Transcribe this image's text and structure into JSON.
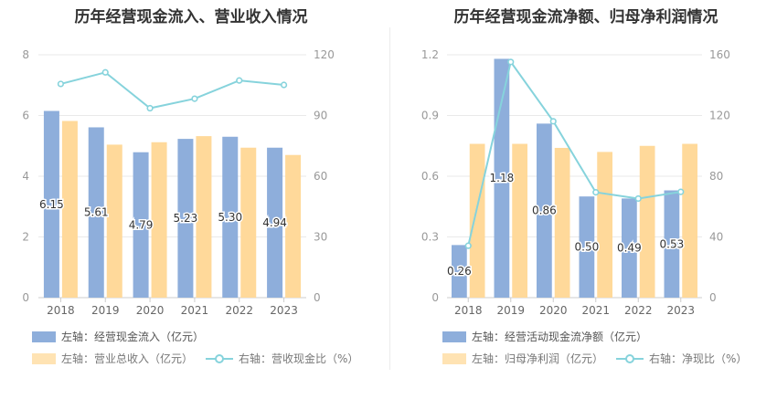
{
  "charts": [
    {
      "title": "历年经营现金流入、营业收入情况",
      "legend": {
        "bar1": "左轴：经营现金流入（亿元）",
        "bar2": "左轴：营业总收入（亿元）",
        "line": "右轴：营收现金比（%）"
      }
    },
    {
      "title": "历年经营现金流净额、归母净利润情况",
      "legend": {
        "bar1": "左轴：经营活动现金流净额（亿元）",
        "bar2": "左轴：归母净利润（亿元）",
        "line": "右轴：净现比（%）"
      }
    }
  ],
  "colors": {
    "bar1": "#8eaedb",
    "bar2": "#ffd99a",
    "line": "#86d3dc",
    "grid": "#e9e9e9",
    "axis": "#999999"
  },
  "chart_data": [
    {
      "type": "bar",
      "title": "历年经营现金流入、营业收入情况",
      "categories": [
        "2018",
        "2019",
        "2020",
        "2021",
        "2022",
        "2023"
      ],
      "left_axis": {
        "ylim": [
          0,
          8
        ],
        "ticks": [
          "0",
          "2",
          "4",
          "6",
          "8"
        ]
      },
      "right_axis": {
        "ylim": [
          0,
          120
        ],
        "ticks": [
          "0",
          "30",
          "60",
          "90",
          "120"
        ]
      },
      "series": [
        {
          "name": "左轴：经营现金流入（亿元）",
          "type": "bar",
          "axis": "left",
          "values": [
            6.15,
            5.61,
            4.79,
            5.23,
            5.3,
            4.94
          ],
          "labels": [
            "6.15",
            "5.61",
            "4.79",
            "5.23",
            "5.30",
            "4.94"
          ]
        },
        {
          "name": "左轴：营业总收入（亿元）",
          "type": "bar",
          "axis": "left",
          "values": [
            5.82,
            5.04,
            5.12,
            5.32,
            4.94,
            4.7
          ]
        },
        {
          "name": "右轴：营收现金比（%）",
          "type": "line",
          "axis": "right",
          "values": [
            105.6,
            111.3,
            93.6,
            98.3,
            107.3,
            105.1
          ]
        }
      ],
      "grid": true,
      "legend_position": "bottom"
    },
    {
      "type": "bar",
      "title": "历年经营现金流净额、归母净利润情况",
      "categories": [
        "2018",
        "2019",
        "2020",
        "2021",
        "2022",
        "2023"
      ],
      "left_axis": {
        "ylim": [
          0,
          1.2
        ],
        "ticks": [
          "0",
          "0.3",
          "0.6",
          "0.9",
          "1.2"
        ]
      },
      "right_axis": {
        "ylim": [
          0,
          160
        ],
        "ticks": [
          "0",
          "40",
          "80",
          "120",
          "160"
        ]
      },
      "series": [
        {
          "name": "左轴：经营活动现金流净额（亿元）",
          "type": "bar",
          "axis": "left",
          "values": [
            0.26,
            1.18,
            0.86,
            0.5,
            0.49,
            0.53
          ],
          "labels": [
            "0.26",
            "1.18",
            "0.86",
            "0.50",
            "0.49",
            "0.53"
          ]
        },
        {
          "name": "左轴：归母净利润（亿元）",
          "type": "bar",
          "axis": "left",
          "values": [
            0.76,
            0.76,
            0.74,
            0.72,
            0.75,
            0.76
          ]
        },
        {
          "name": "右轴：净现比（%）",
          "type": "line",
          "axis": "right",
          "values": [
            34.2,
            155.3,
            116.2,
            69.4,
            65.3,
            69.7
          ]
        }
      ],
      "grid": true,
      "legend_position": "bottom"
    }
  ]
}
